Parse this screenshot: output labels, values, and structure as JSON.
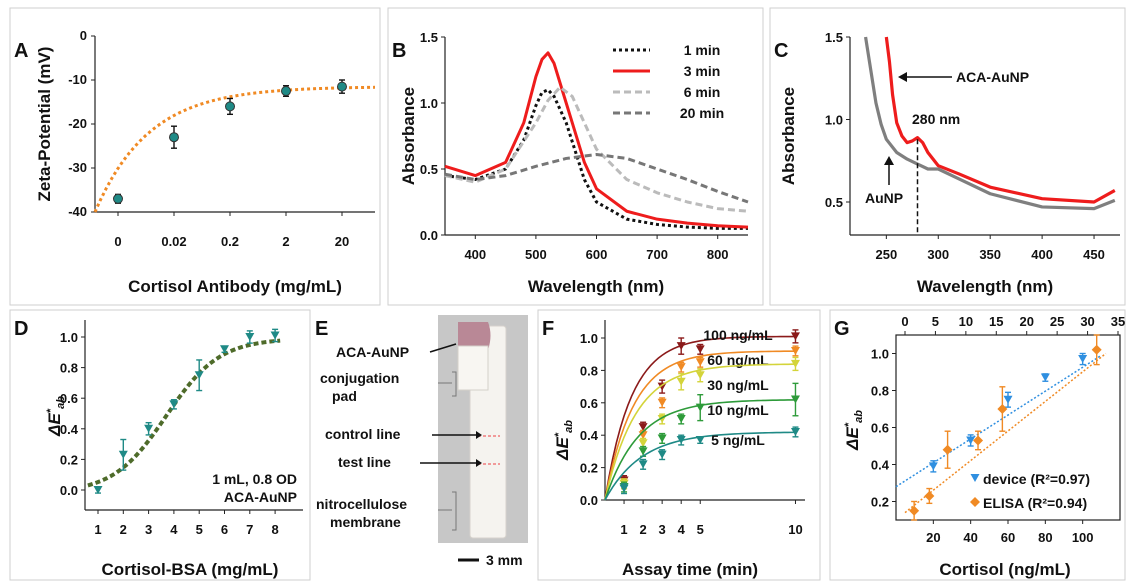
{
  "chart_data": [
    {
      "panel": "A",
      "type": "scatter",
      "xlabel": "Cortisol Antibody (mg/mL)",
      "ylabel": "Zeta-Potential (mV)",
      "categories": [
        "0",
        "0.02",
        "0.2",
        "2",
        "20"
      ],
      "ylim": [
        -40,
        0
      ],
      "yticks": [
        "0",
        "-10",
        "-20",
        "-30",
        "-40"
      ],
      "values": [
        -37,
        -23,
        -16,
        -12.5,
        -11.5
      ],
      "errors": [
        1,
        2.5,
        1.8,
        1.2,
        1.5
      ],
      "fit_color": "#F08A24",
      "marker_color": "#1F8A86"
    },
    {
      "panel": "B",
      "type": "line",
      "xlabel": "Wavelength (nm)",
      "ylabel": "Absorbance",
      "xlim": [
        350,
        850
      ],
      "ylim": [
        0,
        1.5
      ],
      "xticks": [
        "400",
        "500",
        "600",
        "700",
        "800"
      ],
      "yticks": [
        "0.0",
        "0.5",
        "1.0",
        "1.5"
      ],
      "series": [
        {
          "name": "1 min",
          "color": "#111111",
          "style": "dotted",
          "x": [
            350,
            400,
            450,
            480,
            500,
            510,
            520,
            530,
            550,
            580,
            600,
            650,
            700,
            750,
            800,
            850
          ],
          "y": [
            0.45,
            0.42,
            0.5,
            0.72,
            0.98,
            1.08,
            1.1,
            1.05,
            0.85,
            0.42,
            0.25,
            0.12,
            0.08,
            0.06,
            0.05,
            0.05
          ]
        },
        {
          "name": "3 min",
          "color": "#EE1C1C",
          "style": "solid",
          "x": [
            350,
            400,
            450,
            480,
            500,
            510,
            520,
            530,
            550,
            580,
            600,
            650,
            700,
            750,
            800,
            850
          ],
          "y": [
            0.52,
            0.45,
            0.55,
            0.85,
            1.2,
            1.33,
            1.38,
            1.3,
            1.0,
            0.55,
            0.35,
            0.18,
            0.12,
            0.09,
            0.07,
            0.06
          ]
        },
        {
          "name": "6 min",
          "color": "#BBBBBB",
          "style": "dashed",
          "x": [
            350,
            400,
            450,
            500,
            520,
            540,
            560,
            580,
            600,
            650,
            700,
            750,
            800,
            850
          ],
          "y": [
            0.45,
            0.4,
            0.5,
            0.85,
            1.02,
            1.12,
            1.05,
            0.85,
            0.65,
            0.42,
            0.32,
            0.25,
            0.2,
            0.18
          ]
        },
        {
          "name": "20 min",
          "color": "#777777",
          "style": "dashed",
          "x": [
            350,
            400,
            450,
            500,
            550,
            600,
            650,
            700,
            750,
            800,
            850
          ],
          "y": [
            0.46,
            0.42,
            0.45,
            0.52,
            0.58,
            0.61,
            0.58,
            0.5,
            0.42,
            0.33,
            0.25
          ]
        }
      ]
    },
    {
      "panel": "C",
      "type": "line",
      "xlabel": "Wavelength (nm)",
      "ylabel": "Absorbance",
      "xlim": [
        215,
        475
      ],
      "ylim": [
        0.3,
        1.5
      ],
      "xticks": [
        "250",
        "300",
        "350",
        "400",
        "450"
      ],
      "yticks": [
        "0.5",
        "1.0",
        "1.5"
      ],
      "annotations": [
        "ACA-AuNP",
        "280 nm",
        "AuNP"
      ],
      "series": [
        {
          "name": "ACA-AuNP",
          "color": "#EE1C1C",
          "x": [
            250,
            253,
            256,
            260,
            265,
            270,
            275,
            280,
            285,
            290,
            300,
            320,
            350,
            400,
            450,
            470
          ],
          "y": [
            1.5,
            1.35,
            1.15,
            0.98,
            0.9,
            0.86,
            0.87,
            0.89,
            0.86,
            0.8,
            0.72,
            0.67,
            0.59,
            0.52,
            0.5,
            0.57
          ]
        },
        {
          "name": "AuNP",
          "color": "#7F7F7F",
          "x": [
            230,
            235,
            240,
            245,
            250,
            260,
            270,
            280,
            290,
            300,
            320,
            350,
            400,
            450,
            470
          ],
          "y": [
            1.5,
            1.3,
            1.1,
            0.97,
            0.88,
            0.8,
            0.76,
            0.73,
            0.7,
            0.7,
            0.64,
            0.55,
            0.47,
            0.46,
            0.51
          ]
        }
      ]
    },
    {
      "panel": "D",
      "type": "scatter",
      "xlabel": "Cortisol-BSA (mg/mL)",
      "ylabel": "ΔE*ab",
      "categories": [
        "1",
        "2",
        "3",
        "4",
        "5",
        "6",
        "7",
        "8"
      ],
      "ylim": [
        -0.1,
        1.1
      ],
      "yticks": [
        "0.0",
        "0.2",
        "0.4",
        "0.6",
        "0.8",
        "1.0"
      ],
      "values": [
        0.0,
        0.23,
        0.4,
        0.56,
        0.75,
        0.92,
        1.0,
        1.01
      ],
      "errors": [
        0.02,
        0.1,
        0.04,
        0.03,
        0.1,
        0.02,
        0.04,
        0.04
      ],
      "annotation_line1": "1 mL, 0.8 OD",
      "annotation_line2": "ACA-AuNP",
      "fit_color": "#4E6B2A",
      "marker_color": "#1F8A86"
    },
    {
      "panel": "F",
      "type": "line",
      "xlabel": "Assay time (min)",
      "ylabel": "ΔE*ab",
      "xlim": [
        0,
        10.5
      ],
      "ylim": [
        0,
        1.1
      ],
      "xticks": [
        "1",
        "2",
        "3",
        "4",
        "5",
        "10"
      ],
      "yticks": [
        "0.0",
        "0.2",
        "0.4",
        "0.6",
        "0.8",
        "1.0"
      ],
      "series": [
        {
          "name": "100 ng/mL",
          "color": "#8B1A1A",
          "x": [
            1,
            2,
            3,
            4,
            5,
            10
          ],
          "y": [
            0.12,
            0.45,
            0.7,
            0.95,
            0.93,
            1.01
          ],
          "errors": [
            0.03,
            0.03,
            0.04,
            0.05,
            0.03,
            0.04
          ]
        },
        {
          "name": "60 ng/mL",
          "color": "#F08A24",
          "x": [
            1,
            2,
            3,
            4,
            5,
            10
          ],
          "y": [
            0.1,
            0.4,
            0.6,
            0.82,
            0.85,
            0.92
          ],
          "errors": [
            0.03,
            0.03,
            0.03,
            0.03,
            0.03,
            0.03
          ]
        },
        {
          "name": "30 ng/mL",
          "color": "#D4D43A",
          "x": [
            1,
            2,
            3,
            4,
            5,
            10
          ],
          "y": [
            0.1,
            0.35,
            0.5,
            0.73,
            0.77,
            0.84
          ],
          "errors": [
            0.03,
            0.03,
            0.03,
            0.05,
            0.04,
            0.04
          ]
        },
        {
          "name": "10 ng/mL",
          "color": "#2E9B3A",
          "x": [
            1,
            2,
            3,
            4,
            5,
            10
          ],
          "y": [
            0.08,
            0.3,
            0.38,
            0.5,
            0.57,
            0.62
          ],
          "errors": [
            0.03,
            0.03,
            0.03,
            0.03,
            0.08,
            0.1
          ]
        },
        {
          "name": "5 ng/mL",
          "color": "#1F8A86",
          "x": [
            1,
            2,
            3,
            4,
            5,
            10
          ],
          "y": [
            0.07,
            0.22,
            0.28,
            0.37,
            0.37,
            0.42
          ],
          "errors": [
            0.03,
            0.03,
            0.03,
            0.03,
            0.02,
            0.03
          ]
        }
      ]
    },
    {
      "panel": "G",
      "type": "scatter",
      "xlabel": "Cortisol (ng/mL)",
      "ylabel": "ΔE*ab",
      "xlim": [
        0,
        120
      ],
      "xlim_top": [
        0,
        35
      ],
      "ylim": [
        0.1,
        1.1
      ],
      "xticks": [
        "20",
        "40",
        "60",
        "80",
        "100"
      ],
      "xticks_top": [
        "0",
        "5",
        "10",
        "15",
        "20",
        "25",
        "30",
        "35"
      ],
      "yticks": [
        "0.2",
        "0.4",
        "0.6",
        "0.8",
        "1.0"
      ],
      "series": [
        {
          "name": "device (R²=0.97)",
          "color": "#2F8FE0",
          "x": [
            5,
            20,
            40,
            60,
            80,
            100
          ],
          "y": [
            0.13,
            0.39,
            0.53,
            0.75,
            0.87,
            0.97
          ],
          "errors": [
            0.02,
            0.03,
            0.03,
            0.04,
            0.02,
            0.03
          ]
        },
        {
          "name": "ELISA (R²=0.94)",
          "color": "#F08A24",
          "axis": "top",
          "x": [
            1.5,
            4,
            7,
            12,
            16,
            31.5
          ],
          "y": [
            0.15,
            0.23,
            0.48,
            0.53,
            0.7,
            1.02
          ],
          "errors": [
            0.05,
            0.04,
            0.1,
            0.05,
            0.12,
            0.08
          ]
        }
      ]
    }
  ],
  "panels": {
    "A": "A",
    "B": "B",
    "C": "C",
    "D": "D",
    "E": "E",
    "F": "F",
    "G": "G"
  },
  "strip": {
    "labels": [
      "ACA-AuNP",
      "conjugation",
      "pad",
      "control line",
      "test line",
      "nitrocellulose",
      "membrane"
    ],
    "scale": "3 mm"
  }
}
